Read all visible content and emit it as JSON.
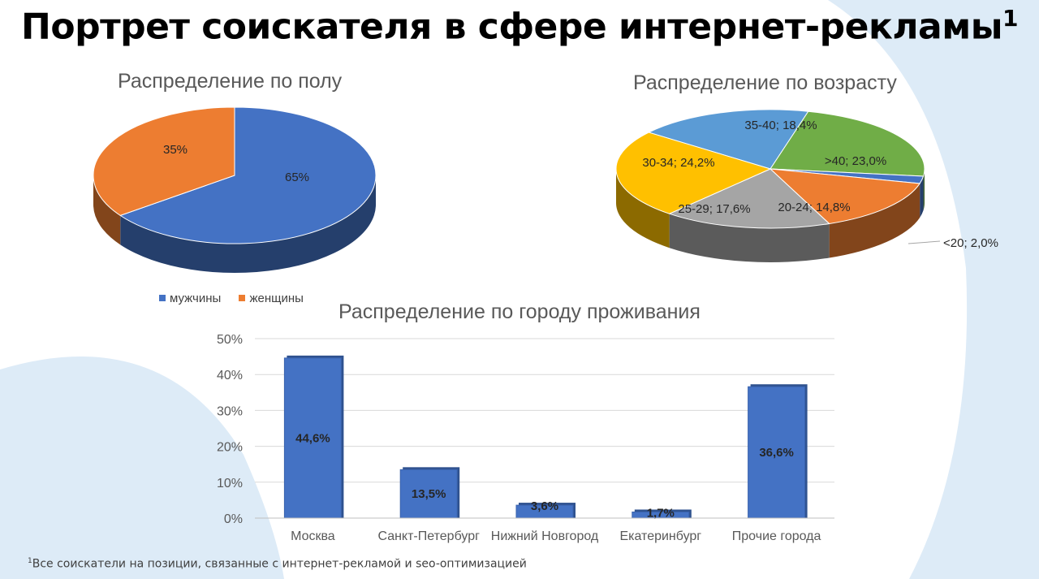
{
  "title": "Портрет соискателя в сфере интернет-рекламы",
  "title_sup": "1",
  "footnote_sup": "1",
  "footnote": "Все соискатели на позиции, связанные с интернет-рекламой и seo-оптимизацией",
  "colors": {
    "blue": "#4472C4",
    "orange": "#ED7D31",
    "gray": "#A5A5A5",
    "yellow": "#FFC000",
    "lightblue": "#5B9BD5",
    "green": "#70AD47",
    "bg": "#DDEBF7"
  },
  "chart_data": [
    {
      "type": "pie",
      "title": "Распределение по полу",
      "categories": [
        "мужчины",
        "женщины"
      ],
      "values": [
        65,
        35
      ],
      "labels": [
        "65%",
        "35%"
      ],
      "colors": [
        "#4472C4",
        "#ED7D31"
      ],
      "legend": "bottom"
    },
    {
      "type": "pie",
      "title": "Распределение по возрасту",
      "categories": [
        "<20",
        "20-24",
        "25-29",
        "30-34",
        "35-40",
        ">40"
      ],
      "values": [
        2.0,
        14.8,
        17.6,
        24.2,
        18.4,
        23.0
      ],
      "labels": [
        "<20; 2,0%",
        "20-24; 14,8%",
        "25-29; 17,6%",
        "30-34; 24,2%",
        "35-40; 18,4%",
        ">40; 23,0%"
      ],
      "colors": [
        "#4472C4",
        "#ED7D31",
        "#A5A5A5",
        "#FFC000",
        "#5B9BD5",
        "#70AD47"
      ]
    },
    {
      "type": "bar",
      "title": "Распределение по городу проживания",
      "categories": [
        "Москва",
        "Санкт-Петербург",
        "Нижний Новгород",
        "Екатеринбург",
        "Прочие города"
      ],
      "values": [
        44.6,
        13.5,
        3.6,
        1.7,
        36.6
      ],
      "labels": [
        "44,6%",
        "13,5%",
        "3,6%",
        "1,7%",
        "36,6%"
      ],
      "ylim": [
        0,
        50
      ],
      "yticks": [
        "0%",
        "10%",
        "20%",
        "30%",
        "40%",
        "50%"
      ],
      "grid": true,
      "color": "#4472C4"
    }
  ]
}
